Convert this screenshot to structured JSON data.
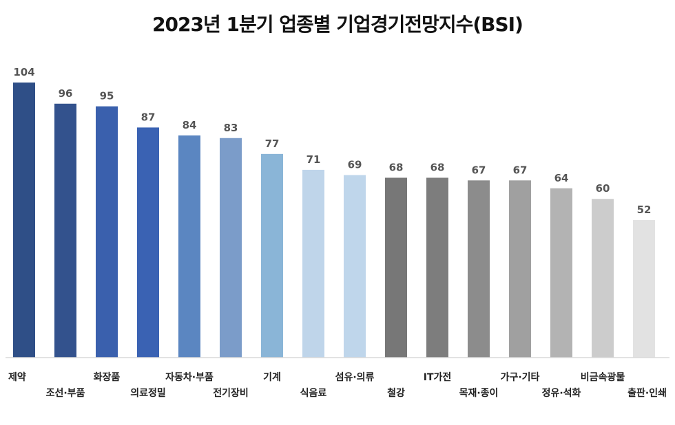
{
  "chart_data": {
    "type": "bar",
    "title": "2023년 1분기 업종별 기업경기전망지수(BSI)",
    "categories": [
      "제약",
      "조선·부품",
      "화장품",
      "의료정밀",
      "자동차·부품",
      "전기장비",
      "기계",
      "식음료",
      "섬유·의류",
      "철강",
      "IT가전",
      "목재·종이",
      "가구·기타",
      "정유·석화",
      "비금속광물",
      "출판·인쇄"
    ],
    "values": [
      104,
      96,
      95,
      87,
      84,
      83,
      77,
      71,
      69,
      68,
      68,
      67,
      67,
      64,
      60,
      52
    ],
    "colors": [
      "#2f4f87",
      "#33528d",
      "#3a60ad",
      "#3a62b3",
      "#5b86c1",
      "#7b9cc9",
      "#8ab5d7",
      "#bfd5ea",
      "#bfd6eb",
      "#777777",
      "#7d7d7d",
      "#8c8c8c",
      "#a0a0a0",
      "#b3b3b3",
      "#cccccc",
      "#e2e2e2"
    ],
    "xlabel": "",
    "ylabel": "",
    "ylim": [
      0,
      104
    ],
    "grid": false,
    "legend": "none"
  }
}
